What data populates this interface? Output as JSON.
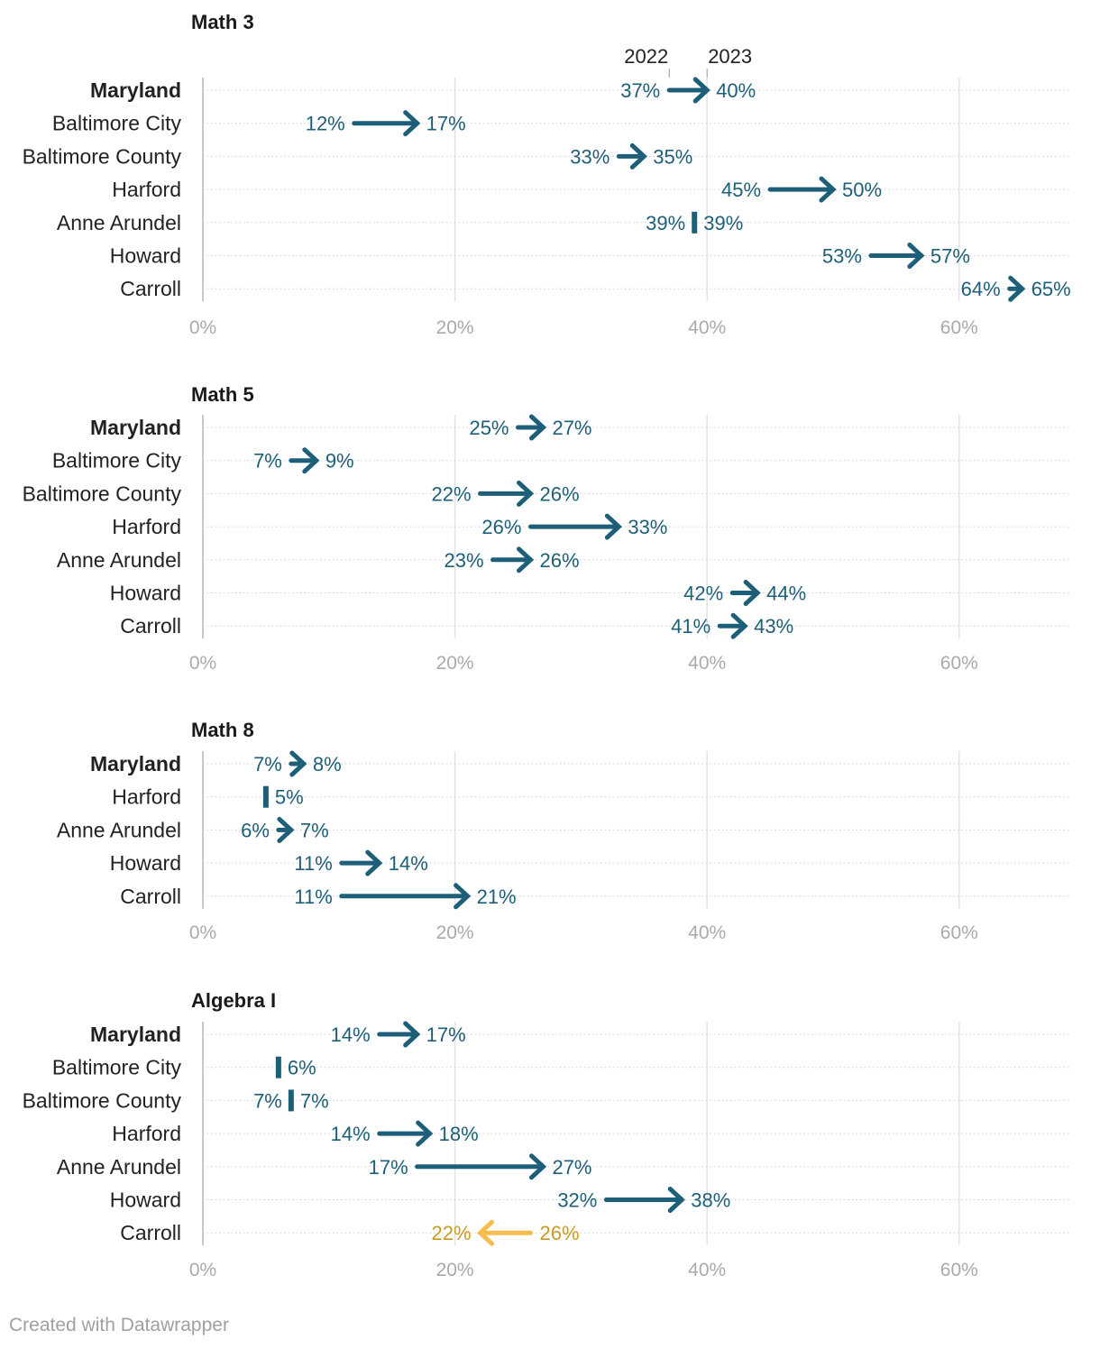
{
  "footer": {
    "credit": "Created with Datawrapper"
  },
  "colors": {
    "increase": "#1d5f78",
    "decrease": "#f5bd4f",
    "decrease_text": "#c99a25",
    "grid": "#e3e3e3",
    "row_line": "#cfcfcf",
    "axis_tick": "#aaaaaa",
    "label": "#222222",
    "title": "#1a1a1a"
  },
  "chart_data": [
    {
      "type": "arrow",
      "title": "Math 3",
      "series_labels": [
        "2022",
        "2023"
      ],
      "x_ticks": [
        "0%",
        "20%",
        "40%",
        "60%"
      ],
      "x_tick_values": [
        0,
        20,
        40,
        60
      ],
      "xlim": [
        0,
        70
      ],
      "rows": [
        {
          "name": "Maryland",
          "bold": true,
          "v2022": 37,
          "v2023": 40,
          "label2022": "37%",
          "label2023": "40%"
        },
        {
          "name": "Baltimore City",
          "bold": false,
          "v2022": 12,
          "v2023": 17,
          "label2022": "12%",
          "label2023": "17%"
        },
        {
          "name": "Baltimore County",
          "bold": false,
          "v2022": 33,
          "v2023": 35,
          "label2022": "33%",
          "label2023": "35%"
        },
        {
          "name": "Harford",
          "bold": false,
          "v2022": 45,
          "v2023": 50,
          "label2022": "45%",
          "label2023": "50%"
        },
        {
          "name": "Anne Arundel",
          "bold": false,
          "v2022": 39,
          "v2023": 39,
          "label2022": "39%",
          "label2023": "39%"
        },
        {
          "name": "Howard",
          "bold": false,
          "v2022": 53,
          "v2023": 57,
          "label2022": "53%",
          "label2023": "57%"
        },
        {
          "name": "Carroll",
          "bold": false,
          "v2022": 64,
          "v2023": 65,
          "label2022": "64%",
          "label2023": "65%"
        }
      ]
    },
    {
      "type": "arrow",
      "title": "Math 5",
      "x_ticks": [
        "0%",
        "20%",
        "40%",
        "60%"
      ],
      "x_tick_values": [
        0,
        20,
        40,
        60
      ],
      "xlim": [
        0,
        70
      ],
      "rows": [
        {
          "name": "Maryland",
          "bold": true,
          "v2022": 25,
          "v2023": 27,
          "label2022": "25%",
          "label2023": "27%"
        },
        {
          "name": "Baltimore City",
          "bold": false,
          "v2022": 7,
          "v2023": 9,
          "label2022": "7%",
          "label2023": "9%"
        },
        {
          "name": "Baltimore County",
          "bold": false,
          "v2022": 22,
          "v2023": 26,
          "label2022": "22%",
          "label2023": "26%"
        },
        {
          "name": "Harford",
          "bold": false,
          "v2022": 26,
          "v2023": 33,
          "label2022": "26%",
          "label2023": "33%"
        },
        {
          "name": "Anne Arundel",
          "bold": false,
          "v2022": 23,
          "v2023": 26,
          "label2022": "23%",
          "label2023": "26%"
        },
        {
          "name": "Howard",
          "bold": false,
          "v2022": 42,
          "v2023": 44,
          "label2022": "42%",
          "label2023": "44%"
        },
        {
          "name": "Carroll",
          "bold": false,
          "v2022": 41,
          "v2023": 43,
          "label2022": "41%",
          "label2023": "43%"
        }
      ]
    },
    {
      "type": "arrow",
      "title": "Math 8",
      "x_ticks": [
        "0%",
        "20%",
        "40%",
        "60%"
      ],
      "x_tick_values": [
        0,
        20,
        40,
        60
      ],
      "xlim": [
        0,
        70
      ],
      "rows": [
        {
          "name": "Maryland",
          "bold": true,
          "v2022": 7,
          "v2023": 8,
          "label2022": "7%",
          "label2023": "8%"
        },
        {
          "name": "Harford",
          "bold": false,
          "v2022": 5,
          "v2023": 5,
          "label2022": "",
          "label2023": "5%"
        },
        {
          "name": "Anne Arundel",
          "bold": false,
          "v2022": 6,
          "v2023": 7,
          "label2022": "6%",
          "label2023": "7%"
        },
        {
          "name": "Howard",
          "bold": false,
          "v2022": 11,
          "v2023": 14,
          "label2022": "11%",
          "label2023": "14%"
        },
        {
          "name": "Carroll",
          "bold": false,
          "v2022": 11,
          "v2023": 21,
          "label2022": "11%",
          "label2023": "21%"
        }
      ]
    },
    {
      "type": "arrow",
      "title": "Algebra I",
      "x_ticks": [
        "0%",
        "20%",
        "40%",
        "60%"
      ],
      "x_tick_values": [
        0,
        20,
        40,
        60
      ],
      "xlim": [
        0,
        70
      ],
      "rows": [
        {
          "name": "Maryland",
          "bold": true,
          "v2022": 14,
          "v2023": 17,
          "label2022": "14%",
          "label2023": "17%"
        },
        {
          "name": "Baltimore City",
          "bold": false,
          "v2022": 6,
          "v2023": 6,
          "label2022": "",
          "label2023": "6%"
        },
        {
          "name": "Baltimore County",
          "bold": false,
          "v2022": 7,
          "v2023": 7,
          "label2022": "7%",
          "label2023": "7%"
        },
        {
          "name": "Harford",
          "bold": false,
          "v2022": 14,
          "v2023": 18,
          "label2022": "14%",
          "label2023": "18%"
        },
        {
          "name": "Anne Arundel",
          "bold": false,
          "v2022": 17,
          "v2023": 27,
          "label2022": "17%",
          "label2023": "27%"
        },
        {
          "name": "Howard",
          "bold": false,
          "v2022": 32,
          "v2023": 38,
          "label2022": "32%",
          "label2023": "38%"
        },
        {
          "name": "Carroll",
          "bold": false,
          "v2022": 26,
          "v2023": 22,
          "label2022": "26%",
          "label2023": "22%"
        }
      ]
    }
  ]
}
